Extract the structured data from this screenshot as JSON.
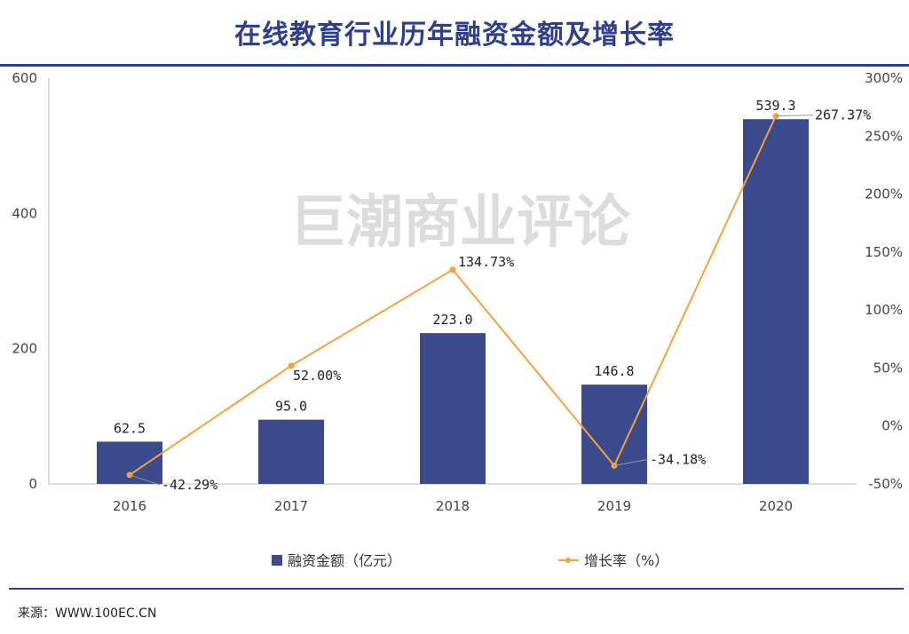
{
  "header": {
    "title": "在线教育行业历年融资金额及增长率"
  },
  "footer": {
    "source": "来源：WWW.100EC.CN"
  },
  "watermark": "巨潮商业评论",
  "colors": {
    "bar": "#3a4a8c",
    "line": "#f5a03a",
    "title": "#2f3f8c"
  },
  "chart_data": {
    "type": "bar",
    "title": "在线教育行业历年融资金额及增长率",
    "categories": [
      "2016",
      "2017",
      "2018",
      "2019",
      "2020"
    ],
    "series": [
      {
        "name": "融资金额（亿元）",
        "type": "bar",
        "axis": "left",
        "values": [
          62.5,
          95.0,
          223.0,
          146.8,
          539.3
        ],
        "labels": [
          "62.5",
          "95.0",
          "223.0",
          "146.8",
          "539.3"
        ]
      },
      {
        "name": "增长率（%）",
        "type": "line",
        "axis": "right",
        "values": [
          -42.29,
          52.0,
          134.73,
          -34.18,
          267.37
        ],
        "labels": [
          "-42.29%",
          "52.00%",
          "134.73%",
          "-34.18%",
          "267.37%"
        ]
      }
    ],
    "y_left": {
      "ylim": [
        0,
        600
      ],
      "ticks": [
        "0",
        "200",
        "400",
        "600"
      ],
      "tick_values": [
        0,
        200,
        400,
        600
      ]
    },
    "y_right": {
      "ylim": [
        -50,
        300
      ],
      "ticks": [
        "-50%",
        "0%",
        "50%",
        "100%",
        "150%",
        "200%",
        "250%",
        "300%"
      ],
      "tick_values": [
        -50,
        0,
        50,
        100,
        150,
        200,
        250,
        300
      ]
    },
    "legend": {
      "position": "bottom",
      "items": [
        "融资金额（亿元）",
        "增长率（%）"
      ]
    }
  }
}
